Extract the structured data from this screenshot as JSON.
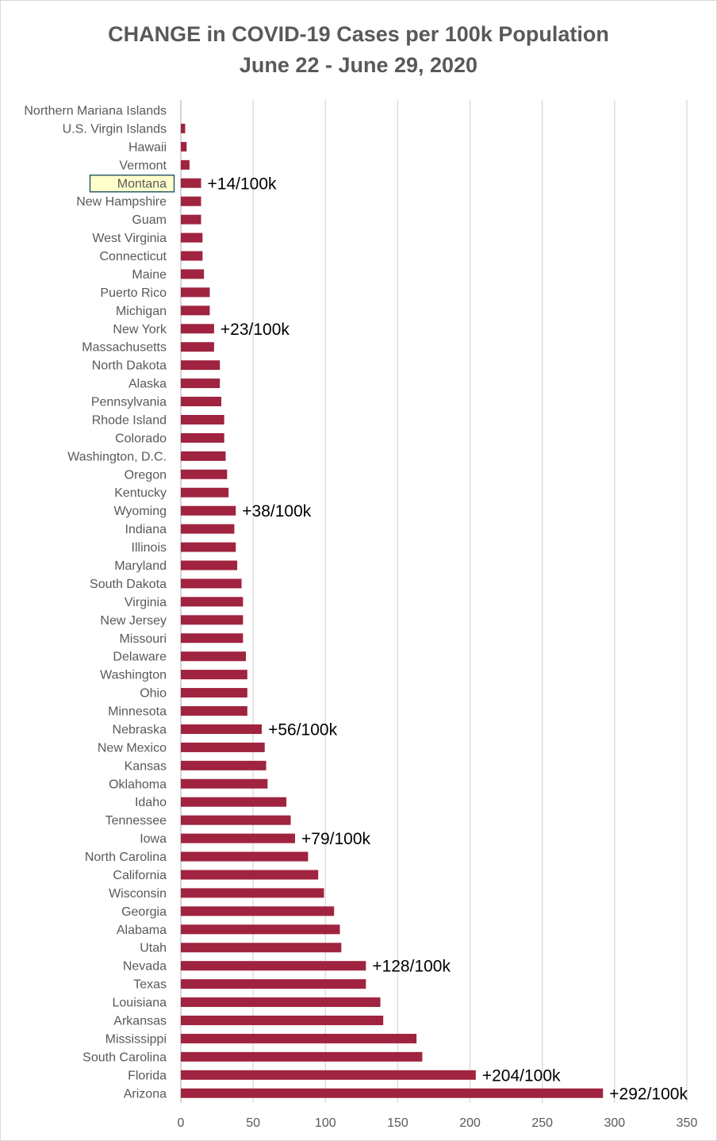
{
  "chart_data": {
    "type": "bar",
    "orientation": "horizontal",
    "title": "CHANGE in COVID-19 Cases per 100k Population",
    "subtitle": "June 22 - June 29, 2020",
    "xlabel": "",
    "ylabel": "",
    "xlim": [
      0,
      350
    ],
    "x_ticks": [
      0,
      50,
      100,
      150,
      200,
      250,
      300,
      350
    ],
    "grid": "vertical",
    "bar_color": "#A0233F",
    "highlight_color": "#FFFFCC",
    "highlight_border": "#2E5C6E",
    "highlight_category": "Montana",
    "categories": [
      "Northern Mariana Islands",
      "U.S. Virgin Islands",
      "Hawaii",
      "Vermont",
      "Montana",
      "New Hampshire",
      "Guam",
      "West Virginia",
      "Connecticut",
      "Maine",
      "Puerto Rico",
      "Michigan",
      "New York",
      "Massachusetts",
      "North Dakota",
      "Alaska",
      "Pennsylvania",
      "Rhode Island",
      "Colorado",
      "Washington, D.C.",
      "Oregon",
      "Kentucky",
      "Wyoming",
      "Indiana",
      "Illinois",
      "Maryland",
      "South Dakota",
      "Virginia",
      "New Jersey",
      "Missouri",
      "Delaware",
      "Washington",
      "Ohio",
      "Minnesota",
      "Nebraska",
      "New Mexico",
      "Kansas",
      "Oklahoma",
      "Idaho",
      "Tennessee",
      "Iowa",
      "North Carolina",
      "California",
      "Wisconsin",
      "Georgia",
      "Alabama",
      "Utah",
      "Nevada",
      "Texas",
      "Louisiana",
      "Arkansas",
      "Mississippi",
      "South Carolina",
      "Florida",
      "Arizona"
    ],
    "values": [
      0,
      3,
      4,
      6,
      14,
      14,
      14,
      15,
      15,
      16,
      20,
      20,
      23,
      23,
      27,
      27,
      28,
      30,
      30,
      31,
      32,
      33,
      38,
      37,
      38,
      39,
      42,
      43,
      43,
      43,
      45,
      46,
      46,
      46,
      56,
      58,
      59,
      60,
      73,
      76,
      79,
      88,
      95,
      99,
      106,
      110,
      111,
      128,
      128,
      138,
      140,
      163,
      167,
      204,
      292
    ],
    "annotations": [
      {
        "category": "Montana",
        "text": "+14/100k"
      },
      {
        "category": "New York",
        "text": "+23/100k"
      },
      {
        "category": "Wyoming",
        "text": "+38/100k"
      },
      {
        "category": "Nebraska",
        "text": "+56/100k"
      },
      {
        "category": "Iowa",
        "text": "+79/100k"
      },
      {
        "category": "Nevada",
        "text": "+128/100k"
      },
      {
        "category": "Florida",
        "text": "+204/100k"
      },
      {
        "category": "Arizona",
        "text": "+292/100k"
      }
    ]
  }
}
